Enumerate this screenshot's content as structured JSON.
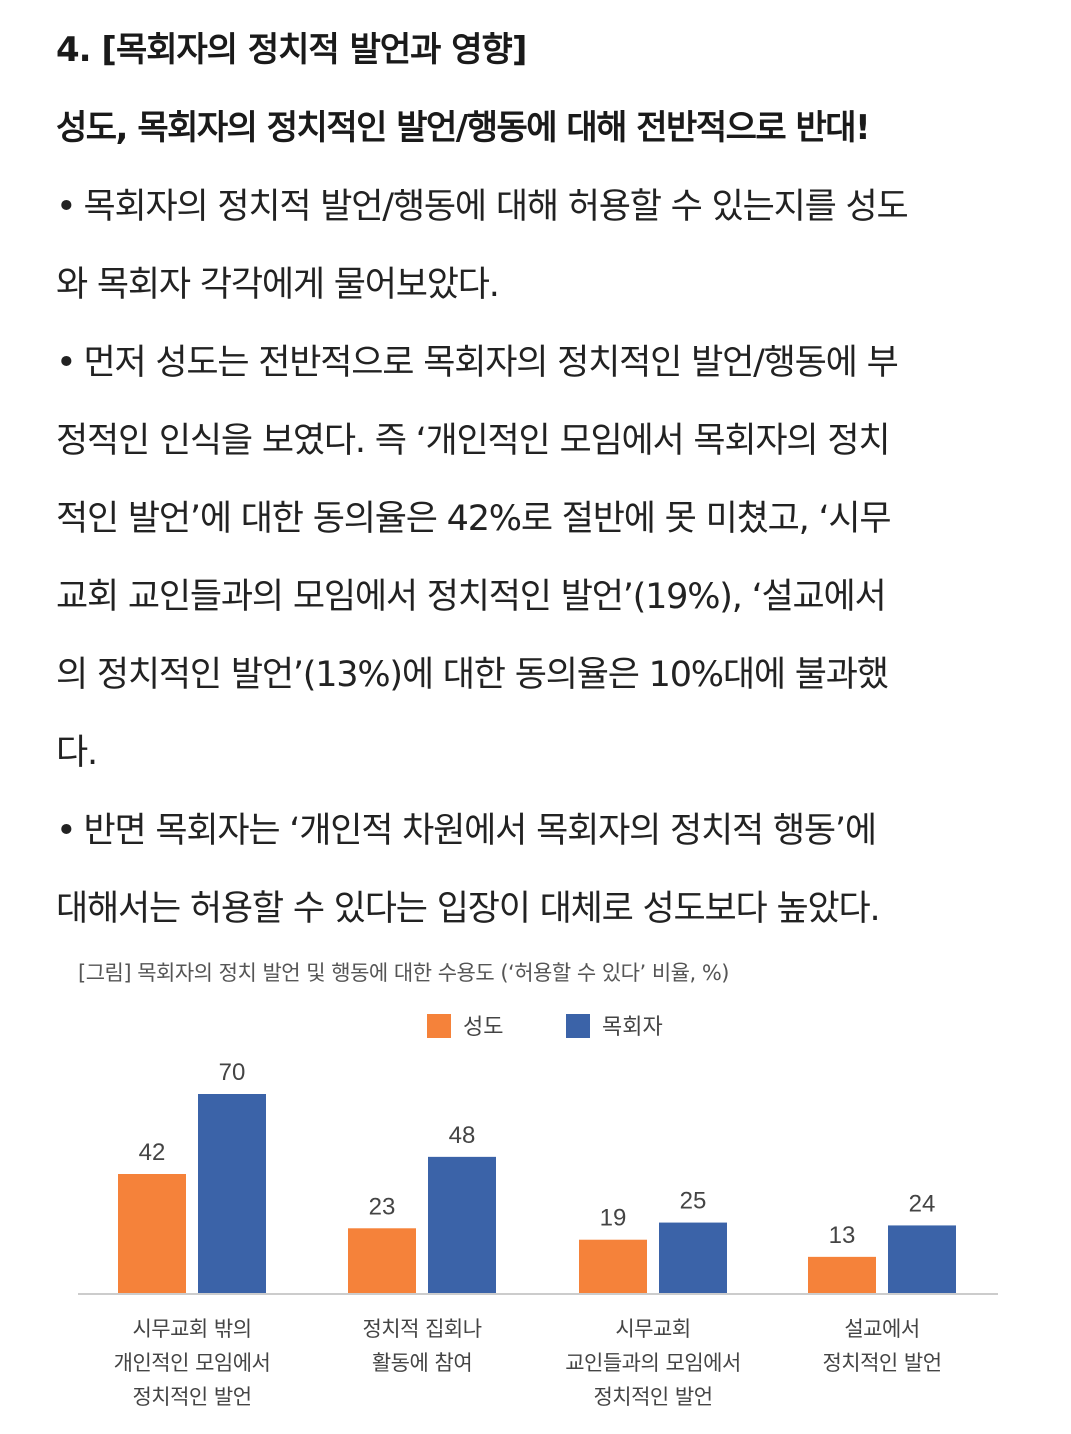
{
  "article": {
    "section_title": "4. [목회자의 정치적 발언과 영향]",
    "subtitle": "성도, 목회자의 정치적인 발언/행동에 대해 전반적으로 반대!",
    "bullet_mark": "•",
    "p1_line1": "목회자의 정치적 발언/행동에 대해 허용할 수 있는지를 성도",
    "p1_line2": "와 목회자 각각에게 물어보았다.",
    "p2_line1": "먼저 성도는 전반적으로 목회자의 정치적인 발언/행동에 부",
    "p2_line2": "정적인 인식을 보였다. 즉 ‘개인적인 모임에서 목회자의 정치",
    "p2_line3": "적인 발언’에 대한 동의율은 42%로 절반에 못 미쳤고, ‘시무",
    "p2_line4": "교회 교인들과의 모임에서 정치적인 발언’(19%), ‘설교에서",
    "p2_line5": "의 정치적인 발언’(13%)에 대한 동의율은 10%대에 불과했",
    "p2_line6": "다.",
    "p3_line1": "반면 목회자는 ‘개인적 차원에서 목회자의 정치적 행동’에",
    "p3_line2": "대해서는 허용할 수 있다는 입장이 대체로 성도보다 높았다."
  },
  "chart_data": {
    "type": "bar",
    "title": "[그림] 목회자의 정치 발언 및 행동에 대한 수용도 (‘허용할 수 있다’ 비율, %)",
    "legend_position": "top-center",
    "categories": [
      [
        "시무교회 밖의",
        "개인적인 모임에서",
        "정치적인 발언"
      ],
      [
        "정치적 집회나",
        "활동에 참여"
      ],
      [
        "시무교회",
        "교인들과의 모임에서",
        "정치적인 발언"
      ],
      [
        "설교에서",
        "정치적인 발언"
      ]
    ],
    "series": [
      {
        "name": "성도",
        "color": "#F5823A",
        "values": [
          42,
          23,
          19,
          13
        ]
      },
      {
        "name": "목회자",
        "color": "#3B63A8",
        "values": [
          70,
          48,
          25,
          24
        ]
      }
    ],
    "ylim": [
      0,
      70
    ],
    "grid": false,
    "data_labels": true
  }
}
